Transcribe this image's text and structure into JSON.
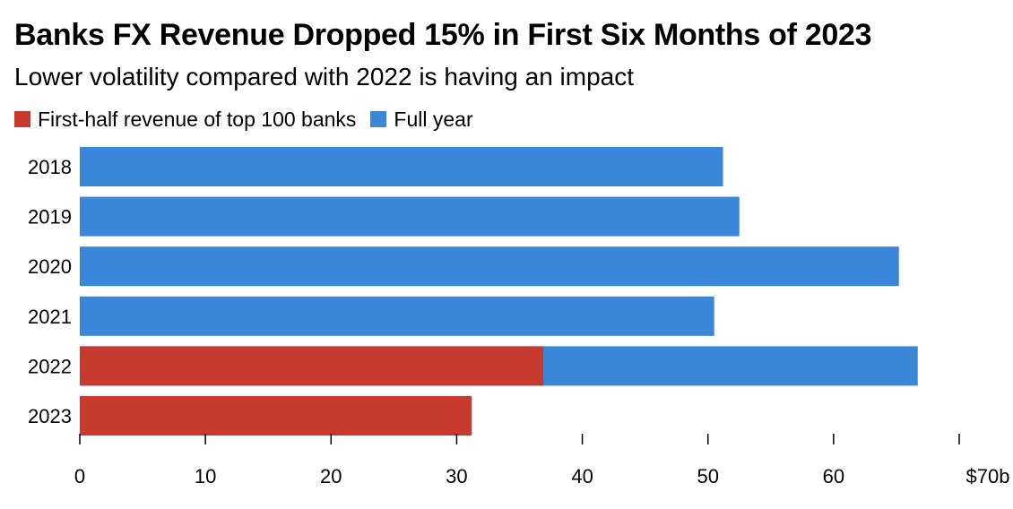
{
  "chart_data": {
    "type": "bar",
    "orientation": "horizontal",
    "title": "Banks FX Revenue Dropped 15% in First Six Months of 2023",
    "subtitle": "Lower volatility compared with 2022 is having an impact",
    "categories": [
      "2018",
      "2019",
      "2020",
      "2021",
      "2022",
      "2023"
    ],
    "series": [
      {
        "name": "Full year",
        "color": "#3a86d8",
        "values": [
          51.2,
          52.5,
          65.2,
          50.5,
          66.7,
          null
        ]
      },
      {
        "name": "First-half revenue of top 100 banks",
        "color": "#c83a2e",
        "values": [
          null,
          null,
          null,
          null,
          36.9,
          31.2
        ]
      }
    ],
    "legend": [
      {
        "label": "First-half revenue of top 100 banks",
        "color": "#c83a2e"
      },
      {
        "label": "Full year",
        "color": "#3a86d8"
      }
    ],
    "legend_position": "top-left",
    "xlim": [
      0,
      70
    ],
    "xticks": [
      0,
      10,
      20,
      30,
      40,
      50,
      60,
      70
    ],
    "xtick_labels": [
      "0",
      "10",
      "20",
      "30",
      "40",
      "50",
      "60",
      "$70b"
    ],
    "xlabel": "",
    "ylabel": "",
    "grid": false
  }
}
